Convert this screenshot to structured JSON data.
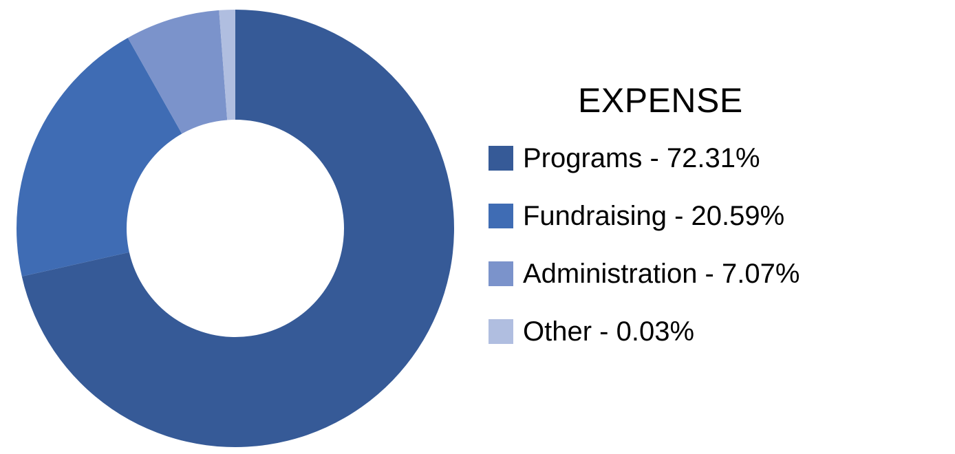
{
  "chart_data": {
    "type": "pie",
    "title": "EXPENSE",
    "donut": true,
    "legend_position": "right",
    "categories": [
      "Programs",
      "Fundraising",
      "Administration",
      "Other"
    ],
    "values": [
      72.31,
      20.59,
      7.07,
      0.03
    ],
    "colors": [
      "#365a97",
      "#3f6cb4",
      "#7b93cb",
      "#b0bee0"
    ],
    "legend": {
      "title": "EXPENSE",
      "items": [
        {
          "label": "Programs - 72.31%",
          "color": "#365a97"
        },
        {
          "label": "Fundraising - 20.59%",
          "color": "#3f6cb4"
        },
        {
          "label": "Administration - 7.07%",
          "color": "#7b93cb"
        },
        {
          "label": "Other - 0.03%",
          "color": "#b0bee0"
        }
      ]
    }
  }
}
